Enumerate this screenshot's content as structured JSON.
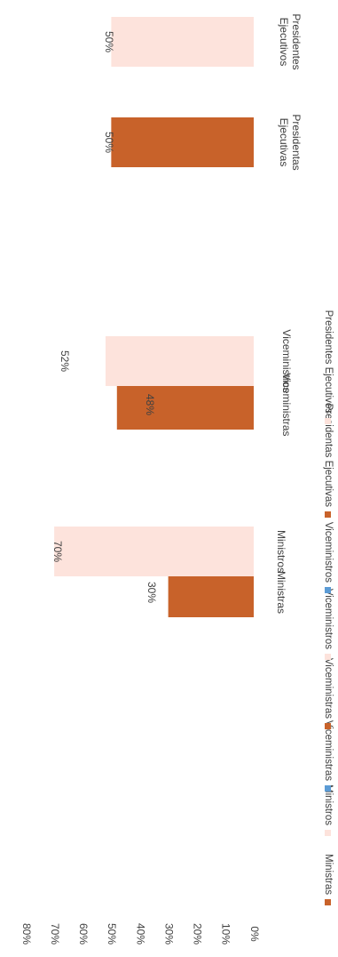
{
  "chart_data": {
    "type": "bar",
    "ylim": [
      0,
      80
    ],
    "y_ticks": [
      "0%",
      "10%",
      "20%",
      "30%",
      "40%",
      "50%",
      "60%",
      "70%",
      "80%"
    ],
    "grid": false,
    "legend_position": "bottom",
    "categories": [
      "Ministras",
      "Ministros",
      "Viceministras",
      "Viceministros",
      "Presidentas Ejecutivas",
      "Presidentes Ejecutivos"
    ],
    "category_labels": [
      [
        "Ministras"
      ],
      [
        "Ministros"
      ],
      [
        "Viceministras"
      ],
      [
        "Viceministros"
      ],
      [
        "Presidentas",
        "Ejecutivas"
      ],
      [
        "Presidentes",
        "Ejecutivos"
      ]
    ],
    "values": [
      30,
      70,
      48,
      52,
      50,
      50
    ],
    "data_labels": [
      "30%",
      "70%",
      "48%",
      "52%",
      "50%",
      "50%"
    ],
    "bar_colors": [
      "#c8622a",
      "#fde3dc",
      "#c8622a",
      "#fde3dc",
      "#c8622a",
      "#fde3dc"
    ],
    "legend": [
      {
        "name": "Ministras",
        "color": "#c8622a"
      },
      {
        "name": "Ministros",
        "color": "#fde3dc"
      },
      {
        "name": "Viceministras",
        "color": "#5b9bd5"
      },
      {
        "name": "Viceministras",
        "color": "#c8622a"
      },
      {
        "name": "Viceministros",
        "color": "#fde3dc"
      },
      {
        "name": "Viceministros",
        "color": "#5b9bd5"
      },
      {
        "name": "Presidentas Ejecutivas",
        "color": "#c8622a"
      },
      {
        "name": "Presidentes Ejecutivos",
        "color": "#fde3dc"
      }
    ]
  }
}
